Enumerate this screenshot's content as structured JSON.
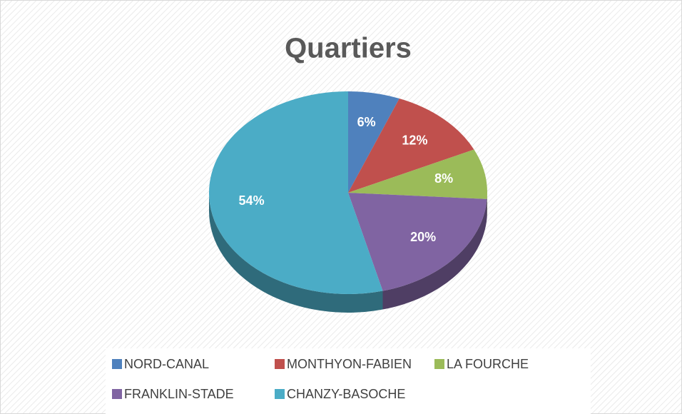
{
  "chart_data": {
    "type": "pie",
    "title": "Quartiers",
    "categories": [
      "NORD-CANAL",
      "MONTHYON-FABIEN",
      "LA FOURCHE",
      "FRANKLIN-STADE",
      "CHANZY-BASOCHE"
    ],
    "values": [
      6,
      12,
      8,
      20,
      54
    ],
    "value_labels": [
      "6%",
      "12%",
      "8%",
      "20%",
      "54%"
    ],
    "colors": [
      "#4f81bd",
      "#c0504d",
      "#9bbb59",
      "#8064a2",
      "#4bacc6"
    ]
  }
}
